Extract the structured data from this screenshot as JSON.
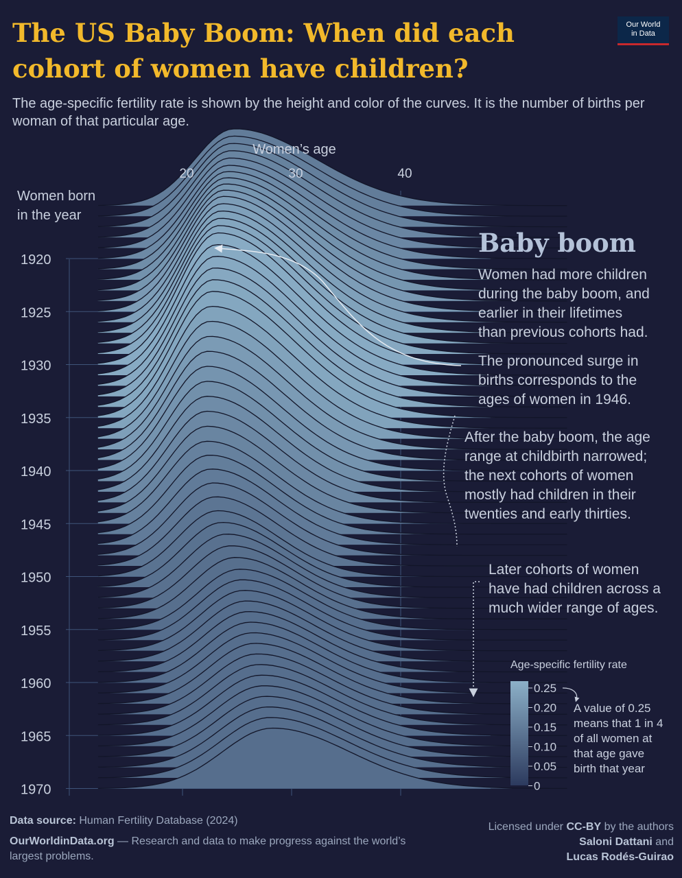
{
  "header": {
    "title": "The US Baby Boom: When did each cohort of women have children?",
    "subtitle": "The age-specific fertility rate is shown by the height and color of the curves. It is the number of births per woman of that particular age.",
    "logo_line1": "Our World",
    "logo_line2": "in Data"
  },
  "annotations": {
    "baby_boom_heading": "Baby boom",
    "note1": [
      "Women had more children",
      "during the baby boom, and",
      "earlier in their lifetimes",
      "than previous cohorts had."
    ],
    "note2": [
      "The pronounced surge in",
      "births corresponds to the",
      "ages of women in 1946."
    ],
    "note3": [
      "After the baby boom, the age",
      "range at childbirth narrowed;",
      "the next cohorts of women",
      "mostly had children in their",
      "twenties and early thirties."
    ],
    "note4": [
      "Later cohorts of women",
      "have had children across a",
      "much wider range of ages."
    ],
    "legend_note": [
      "A value of 0.25",
      "means that 1 in 4",
      "of all women at",
      "that age gave",
      "birth that year"
    ]
  },
  "footer": {
    "source_label": "Data source:",
    "source_text": "Human Fertility Database (2024)",
    "site": "OurWorldinData.org",
    "site_tagline": "— Research and data to make progress against the world’s largest problems.",
    "license_prefix": "Licensed under",
    "license": "CC-BY",
    "license_by": "by the authors",
    "authors_1": "Saloni Dattani",
    "authors_and": "and",
    "authors_2": "Lucas Rodés-Guirao"
  },
  "colors": {
    "background": "#1a1c36",
    "ridge_low": "#2c3a5e",
    "ridge_high": "#8cb0c8",
    "title": "#f2b92b",
    "text": "#c9d0de"
  },
  "chart_data": {
    "type": "ridgeline",
    "xlabel": "Women’s age",
    "ylabel": "Women born in the year",
    "xticks": [
      20,
      30,
      40
    ],
    "yticks": [
      1920,
      1925,
      1930,
      1935,
      1940,
      1945,
      1950,
      1955,
      1960,
      1965,
      1970
    ],
    "cohort_range": [
      1915,
      1970
    ],
    "age_range": [
      12,
      55
    ],
    "legend": {
      "title": "Age-specific fertility rate",
      "ticks": [
        "0.25",
        "0.20",
        "0.15",
        "0.10",
        "0.05",
        "0"
      ],
      "range": [
        0,
        0.25
      ]
    },
    "series_peak_model": {
      "note": "Estimated peak age and peak rate by birth cohort",
      "cohorts": [
        1915,
        1920,
        1925,
        1930,
        1935,
        1940,
        1945,
        1950,
        1955,
        1960,
        1965,
        1970
      ],
      "peak_age": [
        24.5,
        24.0,
        23.5,
        23.0,
        22.5,
        22.0,
        22.0,
        23.0,
        25.0,
        26.0,
        27.0,
        28.0
      ],
      "peak_rate": [
        0.14,
        0.17,
        0.21,
        0.24,
        0.23,
        0.19,
        0.15,
        0.12,
        0.11,
        0.11,
        0.11,
        0.11
      ]
    }
  }
}
